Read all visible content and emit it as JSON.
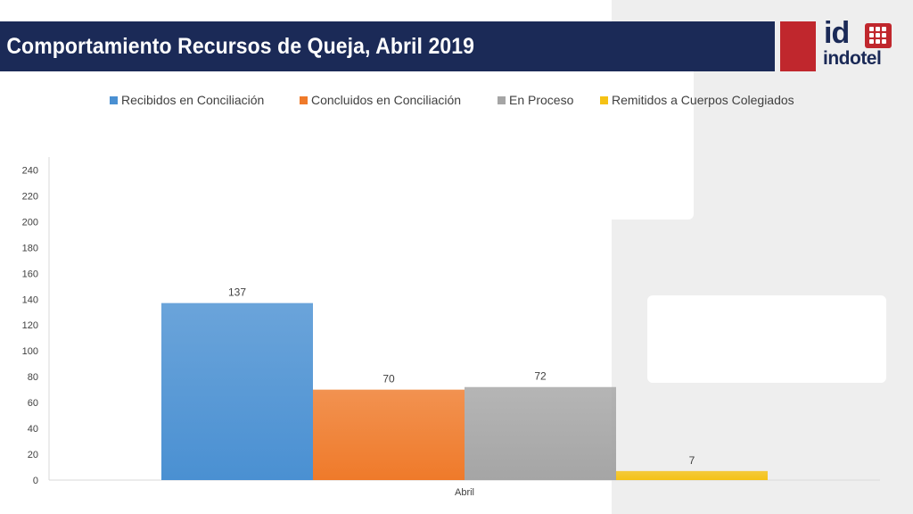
{
  "slide": {
    "title": "Comportamiento Recursos de Queja, Abril 2019",
    "logo": {
      "mark": "id",
      "name": "indotel"
    }
  },
  "chart_data": {
    "type": "bar",
    "categories": [
      "Abril"
    ],
    "series": [
      {
        "name": "Recibidos en Conciliación",
        "values": [
          137
        ],
        "color": "#4a90d2"
      },
      {
        "name": "Concluidos en Conciliación",
        "values": [
          70
        ],
        "color": "#ef7a2a"
      },
      {
        "name": "En Proceso",
        "values": [
          72
        ],
        "color": "#a5a5a5"
      },
      {
        "name": "Remitidos a Cuerpos Colegiados",
        "values": [
          7
        ],
        "color": "#f5c215"
      }
    ],
    "yticks": [
      0,
      20,
      40,
      60,
      80,
      100,
      120,
      140,
      160,
      180,
      200,
      220,
      240
    ],
    "ylim": [
      0,
      250
    ],
    "legend": "top",
    "grid": false,
    "data_labels": true
  }
}
